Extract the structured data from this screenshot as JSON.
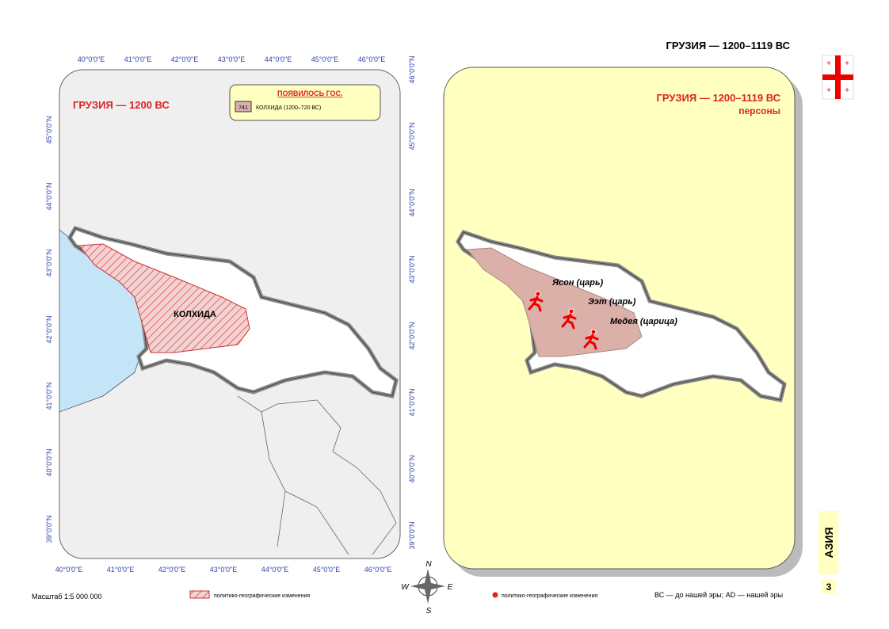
{
  "header": {
    "title": "ГРУЗИЯ — 1200–1119 ВС"
  },
  "left_map": {
    "title": "ГРУЗИЯ — 1200 ВС",
    "legend": {
      "heading": "ПОЯВИЛОСЬ ГОС.",
      "code": "741",
      "item": "КОЛХИДА (1200–720 ВС)"
    },
    "region_label": "КОЛХИДА",
    "longitudes": [
      "40°0'0\"E",
      "41°0'0\"E",
      "42°0'0\"E",
      "43°0'0\"E",
      "44°0'0\"E",
      "45°0'0\"E",
      "46°0'0\"E"
    ],
    "latitudes": [
      "46°0'0\"N",
      "45°0'0\"N",
      "44°0'0\"N",
      "43°0'0\"N",
      "42°0'0\"N",
      "41°0'0\"N",
      "40°0'0\"N",
      "39°0'0\"N"
    ]
  },
  "right_map": {
    "title": "ГРУЗИЯ — 1200–1119 ВС",
    "subtitle": "персоны",
    "persons": [
      "Ясон (царь)",
      "Ээт (царь)",
      "Медея (царица)"
    ]
  },
  "compass": {
    "n": "N",
    "e": "E",
    "s": "S",
    "w": "W"
  },
  "footer": {
    "scale": "Масштаб 1:5 000 000",
    "legend_left": "политико-географические изменения",
    "legend_right": "политико-географические изменения",
    "era_note": "ВС — до нашей эры; AD — нашей эры"
  },
  "side_tab": {
    "section": "АЗИЯ",
    "page": "3"
  }
}
